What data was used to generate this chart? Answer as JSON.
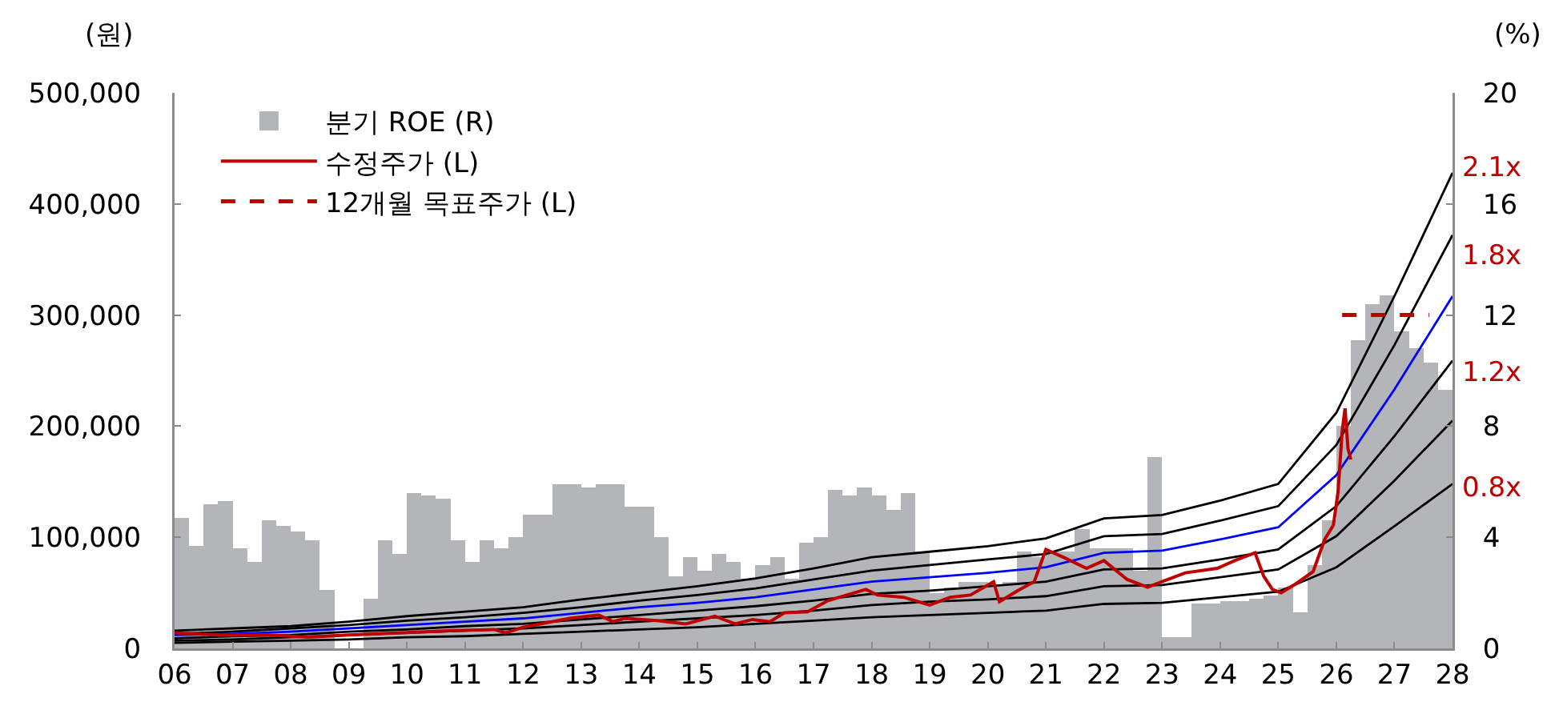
{
  "chart_data": {
    "type": "bar",
    "ylabel": "(원)",
    "y2label": "(%)",
    "xlim": [
      2006,
      2028
    ],
    "xticks": [
      {
        "value": 2006,
        "label": "06"
      },
      {
        "value": 2007,
        "label": "07"
      },
      {
        "value": 2008,
        "label": "08"
      },
      {
        "value": 2009,
        "label": "09"
      },
      {
        "value": 2010,
        "label": "10"
      },
      {
        "value": 2011,
        "label": "11"
      },
      {
        "value": 2012,
        "label": "12"
      },
      {
        "value": 2013,
        "label": "13"
      },
      {
        "value": 2014,
        "label": "14"
      },
      {
        "value": 2015,
        "label": "15"
      },
      {
        "value": 2016,
        "label": "16"
      },
      {
        "value": 2017,
        "label": "17"
      },
      {
        "value": 2018,
        "label": "18"
      },
      {
        "value": 2019,
        "label": "19"
      },
      {
        "value": 2020,
        "label": "20"
      },
      {
        "value": 2021,
        "label": "21"
      },
      {
        "value": 2022,
        "label": "22"
      },
      {
        "value": 2023,
        "label": "23"
      },
      {
        "value": 2024,
        "label": "24"
      },
      {
        "value": 2025,
        "label": "25"
      },
      {
        "value": 2026,
        "label": "26"
      },
      {
        "value": 2027,
        "label": "27"
      },
      {
        "value": 2028,
        "label": "28"
      }
    ],
    "ylim": [
      0,
      500000
    ],
    "yticks": [
      0,
      {
        "value": 100000,
        "label": "100,000"
      },
      {
        "value": 200000,
        "label": "200,000"
      },
      {
        "value": 300000,
        "label": "300,000"
      },
      {
        "value": 400000,
        "label": "400,000"
      },
      {
        "value": 500000,
        "label": "500,000"
      }
    ],
    "y2lim": [
      0,
      20
    ],
    "y2ticks": [
      0,
      4,
      8,
      12,
      16,
      20
    ],
    "grid": false,
    "legend": "top left",
    "series": [
      {
        "name": "분기 ROE (R)",
        "axis": "y2",
        "color": "#b4b5b8",
        "x": [
          2006.125,
          2006.375,
          2006.625,
          2006.875,
          2007.125,
          2007.375,
          2007.625,
          2007.875,
          2008.125,
          2008.375,
          2008.625,
          2008.875,
          2009.125,
          2009.375,
          2009.625,
          2009.875,
          2010.125,
          2010.375,
          2010.625,
          2010.875,
          2011.125,
          2011.375,
          2011.625,
          2011.875,
          2012.125,
          2012.375,
          2012.625,
          2012.875,
          2013.125,
          2013.375,
          2013.625,
          2013.875,
          2014.125,
          2014.375,
          2014.625,
          2014.875,
          2015.125,
          2015.375,
          2015.625,
          2015.875,
          2016.125,
          2016.375,
          2016.625,
          2016.875,
          2017.125,
          2017.375,
          2017.625,
          2017.875,
          2018.125,
          2018.375,
          2018.625,
          2018.875,
          2019.125,
          2019.375,
          2019.625,
          2019.875,
          2020.125,
          2020.375,
          2020.625,
          2020.875,
          2021.125,
          2021.375,
          2021.625,
          2021.875,
          2022.125,
          2022.375,
          2022.625,
          2022.875,
          2023.125,
          2023.375,
          2023.625,
          2023.875,
          2024.125,
          2024.375,
          2024.625,
          2024.875,
          2025.125,
          2025.375,
          2025.625,
          2025.875,
          2026.125,
          2026.375,
          2026.625,
          2026.875,
          2027.125,
          2027.375,
          2027.625,
          2027.875
        ],
        "values": [
          4.7,
          3.7,
          5.2,
          5.3,
          3.6,
          3.1,
          4.6,
          4.4,
          4.2,
          3.9,
          2.1,
          0,
          0,
          1.8,
          3.9,
          3.4,
          5.6,
          5.5,
          5.4,
          3.9,
          3.1,
          3.9,
          3.6,
          4.0,
          4.8,
          4.8,
          5.9,
          5.9,
          5.8,
          5.9,
          5.9,
          5.1,
          5.1,
          4.0,
          2.6,
          3.3,
          2.8,
          3.4,
          3.1,
          2.5,
          3.0,
          3.3,
          2.5,
          3.8,
          4.0,
          5.7,
          5.5,
          5.8,
          5.5,
          5.0,
          5.6,
          3.5,
          2.0,
          2.2,
          2.4,
          2.4,
          2.3,
          2.4,
          3.5,
          3.3,
          3.5,
          3.5,
          4.3,
          3.6,
          3.6,
          3.6,
          2.8,
          6.9,
          0.4,
          0.4,
          1.6,
          1.6,
          1.7,
          1.7,
          1.8,
          1.9,
          2.2,
          1.3,
          3.0,
          4.6,
          8.0,
          11.1,
          12.4,
          12.7,
          11.4,
          10.8,
          10.3,
          9.3
        ]
      },
      {
        "type": "line",
        "color": "#000000",
        "x": [
          2006,
          2007,
          2008,
          2009,
          2010,
          2011,
          2012,
          2013,
          2014,
          2015,
          2016,
          2017,
          2018,
          2019,
          2020,
          2021,
          2022,
          2023,
          2024,
          2025,
          2026,
          2027,
          2028
        ],
        "values": [
          16000,
          18000,
          20000,
          24000,
          29000,
          33000,
          37000,
          44000,
          50000,
          56000,
          63000,
          72000,
          82000,
          87000,
          92000,
          99000,
          117000,
          120000,
          133000,
          148000,
          212000,
          317000,
          428000
        ]
      },
      {
        "type": "line",
        "color": "#000000",
        "x": [
          2006,
          2007,
          2008,
          2009,
          2010,
          2011,
          2012,
          2013,
          2014,
          2015,
          2016,
          2017,
          2018,
          2019,
          2020,
          2021,
          2022,
          2023,
          2024,
          2025,
          2026,
          2027,
          2028
        ],
        "values": [
          13000,
          15000,
          18000,
          21000,
          25000,
          28000,
          32000,
          37000,
          43000,
          48000,
          54000,
          62000,
          70000,
          75000,
          80000,
          85000,
          101000,
          103000,
          115000,
          128000,
          183000,
          273000,
          372000
        ]
      },
      {
        "type": "line",
        "color": "#0000ff",
        "x": [
          2006,
          2007,
          2008,
          2009,
          2010,
          2011,
          2012,
          2013,
          2014,
          2015,
          2016,
          2017,
          2018,
          2019,
          2020,
          2021,
          2022,
          2023,
          2024,
          2025,
          2026,
          2027,
          2028
        ],
        "values": [
          12000,
          13000,
          15000,
          18000,
          21000,
          24000,
          27000,
          32000,
          37000,
          41000,
          46000,
          53000,
          60000,
          64000,
          68000,
          73000,
          86000,
          88000,
          98000,
          109000,
          156000,
          233000,
          317000
        ]
      },
      {
        "type": "line",
        "color": "#000000",
        "x": [
          2006,
          2007,
          2008,
          2009,
          2010,
          2011,
          2012,
          2013,
          2014,
          2015,
          2016,
          2017,
          2018,
          2019,
          2020,
          2021,
          2022,
          2023,
          2024,
          2025,
          2026,
          2027,
          2028
        ],
        "values": [
          9000,
          11000,
          12000,
          15000,
          17000,
          20000,
          22000,
          26000,
          30000,
          34000,
          38000,
          43000,
          49000,
          52000,
          56000,
          60000,
          71000,
          72000,
          80000,
          89000,
          128000,
          191000,
          259000
        ]
      },
      {
        "type": "line",
        "color": "#000000",
        "x": [
          2006,
          2007,
          2008,
          2009,
          2010,
          2011,
          2012,
          2013,
          2014,
          2015,
          2016,
          2017,
          2018,
          2019,
          2020,
          2021,
          2022,
          2023,
          2024,
          2025,
          2026,
          2027,
          2028
        ],
        "values": [
          7000,
          8000,
          10000,
          12000,
          14000,
          16000,
          18000,
          21000,
          24000,
          27000,
          30000,
          34000,
          39000,
          42000,
          44000,
          47000,
          56000,
          57000,
          64000,
          71000,
          101000,
          151000,
          205000
        ]
      },
      {
        "type": "line",
        "color": "#000000",
        "x": [
          2006,
          2007,
          2008,
          2009,
          2010,
          2011,
          2012,
          2013,
          2014,
          2015,
          2016,
          2017,
          2018,
          2019,
          2020,
          2021,
          2022,
          2023,
          2024,
          2025,
          2026,
          2027,
          2028
        ],
        "values": [
          5000,
          6000,
          7000,
          8000,
          10000,
          11000,
          13000,
          15000,
          17000,
          19000,
          22000,
          25000,
          28000,
          30000,
          32000,
          34000,
          40000,
          41000,
          46000,
          51000,
          73000,
          110000,
          148000
        ]
      },
      {
        "name": "수정주가 (L)",
        "type": "line",
        "color": "#c00000",
        "x": [
          2006.0,
          2006.8,
          2007.6,
          2008.3,
          2009.0,
          2009.9,
          2010.8,
          2011.5,
          2011.7,
          2012.0,
          2012.8,
          2013.3,
          2013.55,
          2013.75,
          2014.3,
          2014.8,
          2015.3,
          2015.65,
          2015.95,
          2016.25,
          2016.5,
          2016.9,
          2017.25,
          2017.9,
          2018.1,
          2018.55,
          2019.0,
          2019.35,
          2019.7,
          2020.1,
          2020.2,
          2020.55,
          2020.8,
          2021.0,
          2021.3,
          2021.7,
          2022.0,
          2022.4,
          2022.75,
          2023.0,
          2023.4,
          2023.95,
          2024.25,
          2024.6,
          2024.75,
          2024.9,
          2025.05,
          2025.3,
          2025.6,
          2025.8,
          2025.95,
          2026.03,
          2026.1,
          2026.15,
          2026.2,
          2026.25
        ],
        "values": [
          14000,
          12000,
          12000,
          10000,
          12000,
          14000,
          16000,
          17000,
          14000,
          19000,
          27000,
          30000,
          24000,
          27000,
          25000,
          22000,
          29000,
          22000,
          26000,
          24000,
          32000,
          33000,
          43000,
          53000,
          48000,
          46000,
          39000,
          46000,
          48000,
          60000,
          42000,
          53000,
          60000,
          89000,
          82000,
          72000,
          79000,
          62000,
          55000,
          60000,
          68000,
          72000,
          79000,
          86000,
          65000,
          53000,
          50000,
          58000,
          69000,
          98000,
          111000,
          141000,
          195000,
          216000,
          180000,
          170000
        ]
      },
      {
        "name": "12개월 목표주가 (L)",
        "type": "line",
        "line_style": "dashed",
        "color": "#c00000",
        "x": [
          2026.1,
          2027.6
        ],
        "values": [
          300000,
          300000
        ]
      }
    ],
    "annotations": [
      "2.1x",
      "1.8x",
      "1.2x",
      "0.8x"
    ]
  }
}
